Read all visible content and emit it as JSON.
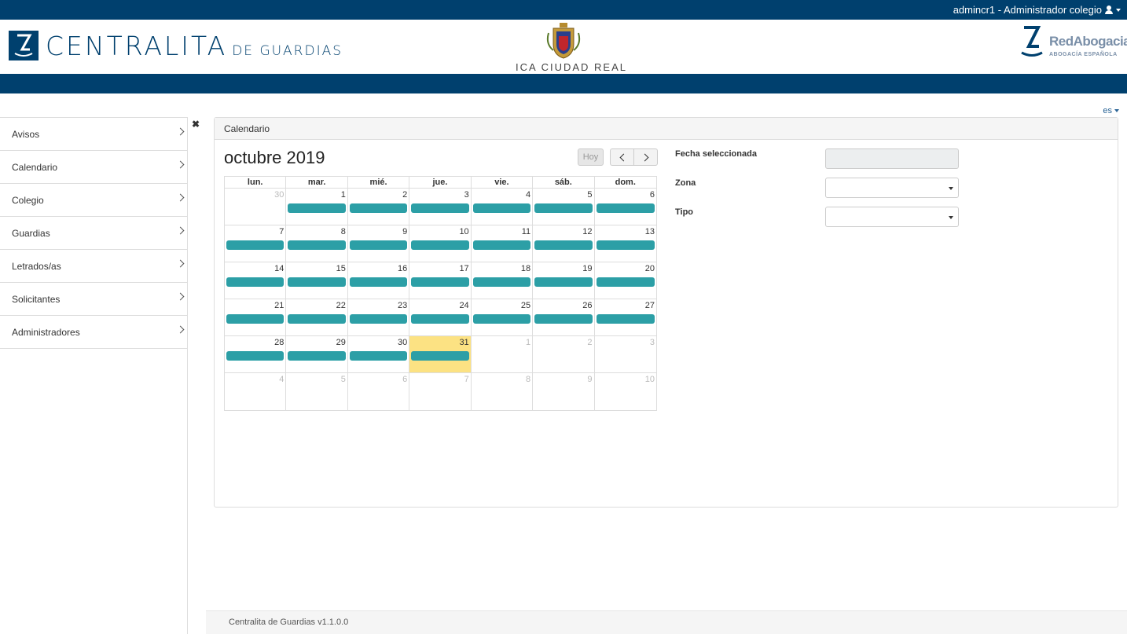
{
  "topbar": {
    "user_label": "admincr1 - Administrador colegio"
  },
  "header": {
    "app_title": "CENTRALITA",
    "app_subtitle": "DE GUARDIAS",
    "college_name": "ICA CIUDAD REAL",
    "partner_name": "RedAbogacia",
    "partner_sub": "ABOGACÍA ESPAÑOLA"
  },
  "language": "es",
  "sidebar": {
    "items": [
      {
        "label": "Avisos"
      },
      {
        "label": "Calendario"
      },
      {
        "label": "Colegio"
      },
      {
        "label": "Guardias"
      },
      {
        "label": "Letrados/as"
      },
      {
        "label": "Solicitantes"
      },
      {
        "label": "Administradores"
      }
    ]
  },
  "panel": {
    "title": "Calendario"
  },
  "calendar": {
    "month_title": "octubre 2019",
    "today_button": "Hoy",
    "weekdays": [
      "lun.",
      "mar.",
      "mié.",
      "jue.",
      "vie.",
      "sáb.",
      "dom."
    ],
    "weeks": [
      [
        {
          "d": "30",
          "other": true,
          "event": false
        },
        {
          "d": "1",
          "other": false,
          "event": true
        },
        {
          "d": "2",
          "other": false,
          "event": true
        },
        {
          "d": "3",
          "other": false,
          "event": true
        },
        {
          "d": "4",
          "other": false,
          "event": true
        },
        {
          "d": "5",
          "other": false,
          "event": true
        },
        {
          "d": "6",
          "other": false,
          "event": true
        }
      ],
      [
        {
          "d": "7",
          "other": false,
          "event": true
        },
        {
          "d": "8",
          "other": false,
          "event": true
        },
        {
          "d": "9",
          "other": false,
          "event": true
        },
        {
          "d": "10",
          "other": false,
          "event": true
        },
        {
          "d": "11",
          "other": false,
          "event": true
        },
        {
          "d": "12",
          "other": false,
          "event": true
        },
        {
          "d": "13",
          "other": false,
          "event": true
        }
      ],
      [
        {
          "d": "14",
          "other": false,
          "event": true
        },
        {
          "d": "15",
          "other": false,
          "event": true
        },
        {
          "d": "16",
          "other": false,
          "event": true
        },
        {
          "d": "17",
          "other": false,
          "event": true
        },
        {
          "d": "18",
          "other": false,
          "event": true
        },
        {
          "d": "19",
          "other": false,
          "event": true
        },
        {
          "d": "20",
          "other": false,
          "event": true
        }
      ],
      [
        {
          "d": "21",
          "other": false,
          "event": true
        },
        {
          "d": "22",
          "other": false,
          "event": true
        },
        {
          "d": "23",
          "other": false,
          "event": true
        },
        {
          "d": "24",
          "other": false,
          "event": true
        },
        {
          "d": "25",
          "other": false,
          "event": true
        },
        {
          "d": "26",
          "other": false,
          "event": true
        },
        {
          "d": "27",
          "other": false,
          "event": true
        }
      ],
      [
        {
          "d": "28",
          "other": false,
          "event": true
        },
        {
          "d": "29",
          "other": false,
          "event": true
        },
        {
          "d": "30",
          "other": false,
          "event": true
        },
        {
          "d": "31",
          "other": false,
          "event": true,
          "today": true
        },
        {
          "d": "1",
          "other": true,
          "event": false
        },
        {
          "d": "2",
          "other": true,
          "event": false
        },
        {
          "d": "3",
          "other": true,
          "event": false
        }
      ],
      [
        {
          "d": "4",
          "other": true,
          "event": false
        },
        {
          "d": "5",
          "other": true,
          "event": false
        },
        {
          "d": "6",
          "other": true,
          "event": false
        },
        {
          "d": "7",
          "other": true,
          "event": false
        },
        {
          "d": "8",
          "other": true,
          "event": false
        },
        {
          "d": "9",
          "other": true,
          "event": false
        },
        {
          "d": "10",
          "other": true,
          "event": false
        }
      ]
    ]
  },
  "form": {
    "fecha_label": "Fecha seleccionada",
    "fecha_value": "",
    "zona_label": "Zona",
    "zona_value": "",
    "tipo_label": "Tipo",
    "tipo_value": ""
  },
  "colors": {
    "brand": "#00406e",
    "event": "#2c9fa6",
    "today": "#fce283"
  },
  "footer": {
    "text": "Centralita de Guardias v1.1.0.0"
  }
}
